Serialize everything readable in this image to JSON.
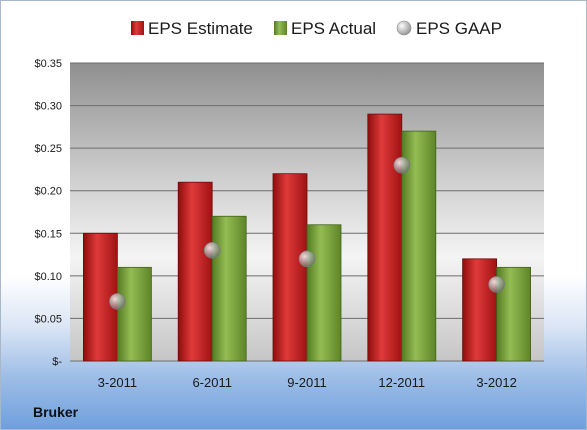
{
  "chart_data": {
    "type": "bar",
    "categories": [
      "3-2011",
      "6-2011",
      "9-2011",
      "12-2011",
      "3-2012"
    ],
    "series": [
      {
        "name": "EPS Estimate",
        "kind": "bar",
        "color": "#cc1f1f",
        "values": [
          0.15,
          0.21,
          0.22,
          0.29,
          0.12
        ]
      },
      {
        "name": "EPS Actual",
        "kind": "bar",
        "color": "#7aa33a",
        "values": [
          0.11,
          0.17,
          0.16,
          0.27,
          0.11
        ]
      },
      {
        "name": "EPS GAAP",
        "kind": "point",
        "color": "#a8a8a8",
        "values": [
          0.07,
          0.13,
          0.12,
          0.23,
          0.09
        ]
      }
    ],
    "ylim": [
      0,
      0.35
    ],
    "yticks": [
      0,
      0.05,
      0.1,
      0.15,
      0.2,
      0.25,
      0.3,
      0.35
    ],
    "ytick_labels": [
      "$-",
      "$0.05",
      "$0.10",
      "$0.15",
      "$0.20",
      "$0.25",
      "$0.30",
      "$0.35"
    ],
    "grid": true,
    "legend_position": "top",
    "xlabel": "",
    "ylabel": ""
  },
  "footer": {
    "company": "Bruker"
  }
}
